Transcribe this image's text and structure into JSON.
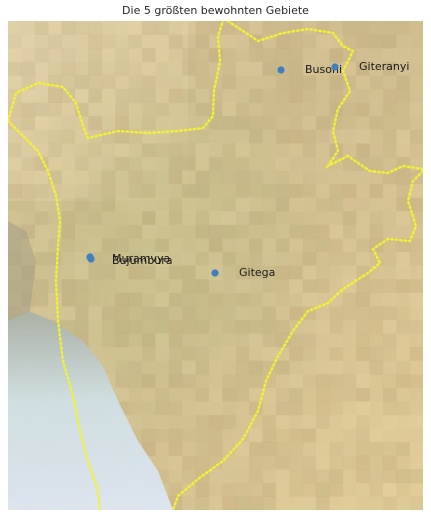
{
  "map": {
    "title": "Die 5 größten bewohnten Gebiete",
    "marker_color": "#3d7fbf",
    "border_color": "#f2f234",
    "cities": [
      {
        "name": "Bujumbura",
        "label": "Bujumbura"
      },
      {
        "name": "Muramvya",
        "label": "Muramvya"
      },
      {
        "name": "Gitega",
        "label": "Gitega"
      },
      {
        "name": "Busoni",
        "label": "Busoni"
      },
      {
        "name": "Giteranyi",
        "label": "Giteranyi"
      }
    ]
  }
}
